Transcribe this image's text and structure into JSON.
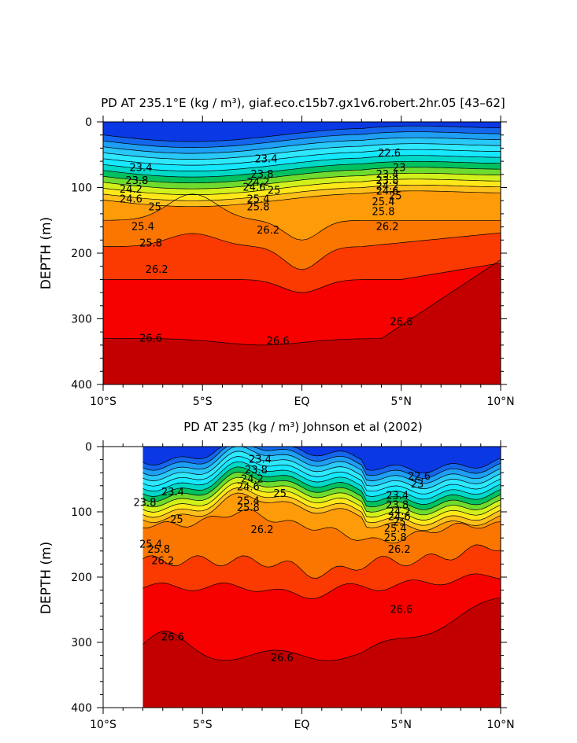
{
  "chart_data": [
    {
      "type": "heatmap",
      "title": "PD AT 235.1°E (kg / m³), giaf.eco.c15b7.gx1v6.robert.2hr.05 [43–62]",
      "ylabel": "DEPTH (m)",
      "xlabel": "",
      "x_ticks": [
        "10°S",
        "5°S",
        "EQ",
        "5°N",
        "10°N"
      ],
      "x_values": [
        -10,
        -5,
        0,
        5,
        10
      ],
      "y_ticks": [
        "0",
        "100",
        "200",
        "300",
        "400"
      ],
      "y_values": [
        0,
        100,
        200,
        300,
        400
      ],
      "xlim": [
        -10,
        10
      ],
      "ylim": [
        0,
        400
      ],
      "y_inverted": true,
      "x_data_start": -10,
      "contour_labels": [
        {
          "text": "23.4",
          "x": -8.1,
          "y": 70
        },
        {
          "text": "23.8",
          "x": -8.3,
          "y": 90
        },
        {
          "text": "24.2",
          "x": -8.6,
          "y": 103
        },
        {
          "text": "24.6",
          "x": -8.6,
          "y": 118
        },
        {
          "text": "25",
          "x": -7.4,
          "y": 130
        },
        {
          "text": "25.4",
          "x": -8.0,
          "y": 160
        },
        {
          "text": "25.8",
          "x": -7.6,
          "y": 185
        },
        {
          "text": "26.2",
          "x": -7.3,
          "y": 225
        },
        {
          "text": "26.6",
          "x": -7.6,
          "y": 330
        },
        {
          "text": "23.4",
          "x": -1.8,
          "y": 57
        },
        {
          "text": "23.8",
          "x": -2.0,
          "y": 80
        },
        {
          "text": "24.2",
          "x": -2.2,
          "y": 92
        },
        {
          "text": "24.6",
          "x": -2.4,
          "y": 100
        },
        {
          "text": "25",
          "x": -1.4,
          "y": 105
        },
        {
          "text": "25.4",
          "x": -2.2,
          "y": 118
        },
        {
          "text": "25.8",
          "x": -2.2,
          "y": 130
        },
        {
          "text": "26.2",
          "x": -1.7,
          "y": 165
        },
        {
          "text": "26.6",
          "x": -1.2,
          "y": 334
        },
        {
          "text": "22.6",
          "x": 4.4,
          "y": 48
        },
        {
          "text": "23",
          "x": 4.9,
          "y": 70
        },
        {
          "text": "23.4",
          "x": 4.3,
          "y": 80
        },
        {
          "text": "23.8",
          "x": 4.3,
          "y": 90
        },
        {
          "text": "24.2",
          "x": 4.3,
          "y": 98
        },
        {
          "text": "24.6",
          "x": 4.3,
          "y": 106
        },
        {
          "text": "25",
          "x": 4.7,
          "y": 113
        },
        {
          "text": "25.4",
          "x": 4.1,
          "y": 122
        },
        {
          "text": "25.8",
          "x": 4.1,
          "y": 137
        },
        {
          "text": "26.2",
          "x": 4.3,
          "y": 160
        },
        {
          "text": "26.6",
          "x": 5.0,
          "y": 305
        }
      ]
    },
    {
      "type": "heatmap",
      "title": "PD AT 235 (kg / m³) Johnson et al (2002)",
      "ylabel": "DEPTH (m)",
      "xlabel": "",
      "x_ticks": [
        "10°S",
        "5°S",
        "EQ",
        "5°N",
        "10°N"
      ],
      "x_values": [
        -10,
        -5,
        0,
        5,
        10
      ],
      "y_ticks": [
        "0",
        "100",
        "200",
        "300",
        "400"
      ],
      "y_values": [
        0,
        100,
        200,
        300,
        400
      ],
      "xlim": [
        -10,
        10
      ],
      "ylim": [
        0,
        400
      ],
      "y_inverted": true,
      "x_data_start": -8,
      "contour_labels": [
        {
          "text": "23.4",
          "x": -6.5,
          "y": 70
        },
        {
          "text": "23.8",
          "x": -7.9,
          "y": 86
        },
        {
          "text": "25",
          "x": -6.3,
          "y": 112
        },
        {
          "text": "25.4",
          "x": -7.6,
          "y": 150
        },
        {
          "text": "25.8",
          "x": -7.2,
          "y": 158
        },
        {
          "text": "26.2",
          "x": -7.0,
          "y": 175
        },
        {
          "text": "26.6",
          "x": -6.5,
          "y": 292
        },
        {
          "text": "23.4",
          "x": -2.1,
          "y": 20
        },
        {
          "text": "23.8",
          "x": -2.3,
          "y": 36
        },
        {
          "text": "24.2",
          "x": -2.5,
          "y": 50
        },
        {
          "text": "24.6",
          "x": -2.7,
          "y": 62
        },
        {
          "text": "25",
          "x": -1.1,
          "y": 72
        },
        {
          "text": "25.4",
          "x": -2.7,
          "y": 84
        },
        {
          "text": "25.8",
          "x": -2.7,
          "y": 94
        },
        {
          "text": "26.2",
          "x": -2.0,
          "y": 128
        },
        {
          "text": "26.6",
          "x": -1.0,
          "y": 324
        },
        {
          "text": "22.6",
          "x": 5.9,
          "y": 46
        },
        {
          "text": "23",
          "x": 5.8,
          "y": 58
        },
        {
          "text": "23.4",
          "x": 4.8,
          "y": 75
        },
        {
          "text": "23.8",
          "x": 4.8,
          "y": 90
        },
        {
          "text": "24.2",
          "x": 4.9,
          "y": 100
        },
        {
          "text": "24.6",
          "x": 4.9,
          "y": 108
        },
        {
          "text": "25",
          "x": 4.9,
          "y": 116
        },
        {
          "text": "25.4",
          "x": 4.7,
          "y": 126
        },
        {
          "text": "25.8",
          "x": 4.7,
          "y": 140
        },
        {
          "text": "26.2",
          "x": 4.9,
          "y": 158
        },
        {
          "text": "26.6",
          "x": 5.0,
          "y": 250
        }
      ]
    }
  ],
  "colors": {
    "scale": [
      "#7a0000",
      "#c20000",
      "#f70000",
      "#fa3a00",
      "#fb7600",
      "#fd9b08",
      "#ffc01c",
      "#ffe81a",
      "#d2f11c",
      "#6edb2e",
      "#00c060",
      "#00d8c8",
      "#16e8ff",
      "#2ee8ff",
      "#28c8f8",
      "#1e9ef4",
      "#1467ec",
      "#0a38e4",
      "#0000dc",
      "#5a10e0",
      "#9b10d8",
      "#c820c8"
    ]
  }
}
